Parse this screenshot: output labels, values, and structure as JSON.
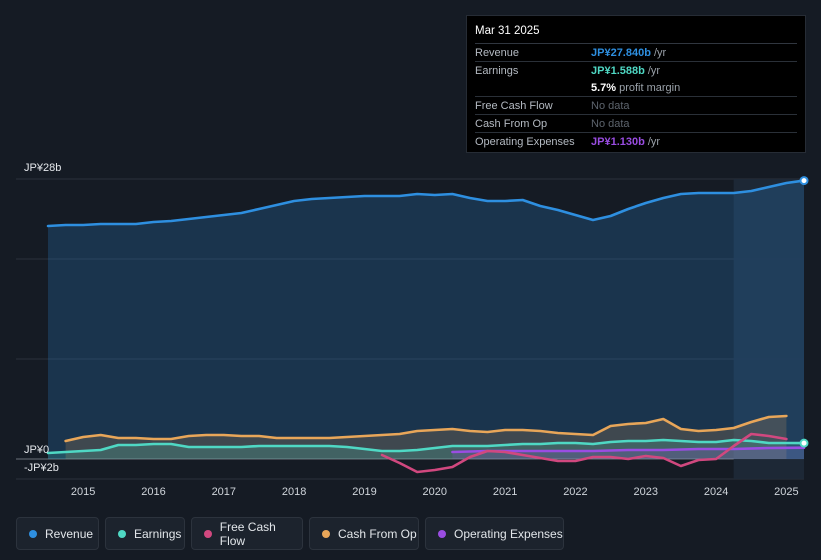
{
  "tooltip": {
    "date": "Mar 31 2025",
    "revenue_label": "Revenue",
    "revenue_value": "JP¥27.840b",
    "revenue_unit": "/yr",
    "earnings_label": "Earnings",
    "earnings_value": "JP¥1.588b",
    "earnings_unit": "/yr",
    "margin_value": "5.7%",
    "margin_label": "profit margin",
    "fcf_label": "Free Cash Flow",
    "fcf_value": "No data",
    "cfo_label": "Cash From Op",
    "cfo_value": "No data",
    "opex_label": "Operating Expenses",
    "opex_value": "JP¥1.130b",
    "opex_unit": "/yr"
  },
  "legend": {
    "revenue": "Revenue",
    "earnings": "Earnings",
    "fcf": "Free Cash Flow",
    "cfo": "Cash From Op",
    "opex": "Operating Expenses"
  },
  "colors": {
    "revenue": "#2e8fe0",
    "earnings": "#4fd8c4",
    "fcf": "#d1487f",
    "cfo": "#e8a659",
    "opex": "#9a4de2"
  },
  "chart_data": {
    "type": "line",
    "y_unit": "JP¥ b",
    "ylim": [
      -2,
      28
    ],
    "xlim": [
      2014.5,
      2025.25
    ],
    "y_tick_labels": [
      {
        "value": 28,
        "label": "JP¥28b"
      },
      {
        "value": 0,
        "label": "JP¥0"
      },
      {
        "value": -2,
        "label": "-JP¥2b"
      }
    ],
    "x_ticks": [
      "2015",
      "2016",
      "2017",
      "2018",
      "2019",
      "2020",
      "2021",
      "2022",
      "2023",
      "2024",
      "2025"
    ],
    "highlight_from": 2024.25,
    "series": [
      {
        "key": "revenue",
        "name": "Revenue",
        "area": true,
        "points": [
          [
            2014.5,
            23.3
          ],
          [
            2014.75,
            23.4
          ],
          [
            2015.0,
            23.4
          ],
          [
            2015.25,
            23.5
          ],
          [
            2015.5,
            23.5
          ],
          [
            2015.75,
            23.5
          ],
          [
            2016.0,
            23.7
          ],
          [
            2016.25,
            23.8
          ],
          [
            2016.5,
            24.0
          ],
          [
            2016.75,
            24.2
          ],
          [
            2017.0,
            24.4
          ],
          [
            2017.25,
            24.6
          ],
          [
            2017.5,
            25.0
          ],
          [
            2017.75,
            25.4
          ],
          [
            2018.0,
            25.8
          ],
          [
            2018.25,
            26.0
          ],
          [
            2018.5,
            26.1
          ],
          [
            2018.75,
            26.2
          ],
          [
            2019.0,
            26.3
          ],
          [
            2019.25,
            26.3
          ],
          [
            2019.5,
            26.3
          ],
          [
            2019.75,
            26.5
          ],
          [
            2020.0,
            26.4
          ],
          [
            2020.25,
            26.5
          ],
          [
            2020.5,
            26.1
          ],
          [
            2020.75,
            25.8
          ],
          [
            2021.0,
            25.8
          ],
          [
            2021.25,
            25.9
          ],
          [
            2021.5,
            25.3
          ],
          [
            2021.75,
            24.9
          ],
          [
            2022.0,
            24.4
          ],
          [
            2022.25,
            23.9
          ],
          [
            2022.5,
            24.3
          ],
          [
            2022.75,
            25.0
          ],
          [
            2023.0,
            25.6
          ],
          [
            2023.25,
            26.1
          ],
          [
            2023.5,
            26.5
          ],
          [
            2023.75,
            26.6
          ],
          [
            2024.0,
            26.6
          ],
          [
            2024.25,
            26.6
          ],
          [
            2024.5,
            26.8
          ],
          [
            2024.75,
            27.2
          ],
          [
            2025.0,
            27.6
          ],
          [
            2025.25,
            27.84
          ]
        ]
      },
      {
        "key": "earnings",
        "name": "Earnings",
        "area": true,
        "points": [
          [
            2014.5,
            0.6
          ],
          [
            2014.75,
            0.7
          ],
          [
            2015.0,
            0.8
          ],
          [
            2015.25,
            0.9
          ],
          [
            2015.5,
            1.4
          ],
          [
            2015.75,
            1.4
          ],
          [
            2016.0,
            1.5
          ],
          [
            2016.25,
            1.5
          ],
          [
            2016.5,
            1.2
          ],
          [
            2016.75,
            1.2
          ],
          [
            2017.0,
            1.2
          ],
          [
            2017.25,
            1.2
          ],
          [
            2017.5,
            1.3
          ],
          [
            2017.75,
            1.3
          ],
          [
            2018.0,
            1.3
          ],
          [
            2018.25,
            1.3
          ],
          [
            2018.5,
            1.3
          ],
          [
            2018.75,
            1.2
          ],
          [
            2019.0,
            1.0
          ],
          [
            2019.25,
            0.8
          ],
          [
            2019.5,
            0.8
          ],
          [
            2019.75,
            0.9
          ],
          [
            2020.0,
            1.1
          ],
          [
            2020.25,
            1.3
          ],
          [
            2020.5,
            1.3
          ],
          [
            2020.75,
            1.3
          ],
          [
            2021.0,
            1.4
          ],
          [
            2021.25,
            1.5
          ],
          [
            2021.5,
            1.5
          ],
          [
            2021.75,
            1.6
          ],
          [
            2022.0,
            1.6
          ],
          [
            2022.25,
            1.5
          ],
          [
            2022.5,
            1.7
          ],
          [
            2022.75,
            1.8
          ],
          [
            2023.0,
            1.8
          ],
          [
            2023.25,
            1.9
          ],
          [
            2023.5,
            1.8
          ],
          [
            2023.75,
            1.7
          ],
          [
            2024.0,
            1.7
          ],
          [
            2024.25,
            1.9
          ],
          [
            2024.5,
            1.8
          ],
          [
            2024.75,
            1.6
          ],
          [
            2025.0,
            1.6
          ],
          [
            2025.25,
            1.588
          ]
        ]
      },
      {
        "key": "fcf",
        "name": "Free Cash Flow",
        "area": false,
        "points": [
          [
            2019.25,
            0.4
          ],
          [
            2019.5,
            -0.4
          ],
          [
            2019.75,
            -1.3
          ],
          [
            2020.0,
            -1.1
          ],
          [
            2020.25,
            -0.8
          ],
          [
            2020.5,
            0.2
          ],
          [
            2020.75,
            0.8
          ],
          [
            2021.0,
            0.7
          ],
          [
            2021.25,
            0.4
          ],
          [
            2021.5,
            0.1
          ],
          [
            2021.75,
            -0.2
          ],
          [
            2022.0,
            -0.2
          ],
          [
            2022.25,
            0.2
          ],
          [
            2022.5,
            0.2
          ],
          [
            2022.75,
            0.0
          ],
          [
            2023.0,
            0.3
          ],
          [
            2023.25,
            0.1
          ],
          [
            2023.5,
            -0.7
          ],
          [
            2023.75,
            -0.1
          ],
          [
            2024.0,
            0.0
          ],
          [
            2024.25,
            1.3
          ],
          [
            2024.5,
            2.5
          ],
          [
            2024.75,
            2.3
          ],
          [
            2025.0,
            2.0
          ]
        ]
      },
      {
        "key": "cfo",
        "name": "Cash From Op",
        "area": true,
        "points": [
          [
            2014.75,
            1.8
          ],
          [
            2015.0,
            2.2
          ],
          [
            2015.25,
            2.4
          ],
          [
            2015.5,
            2.1
          ],
          [
            2015.75,
            2.1
          ],
          [
            2016.0,
            2.0
          ],
          [
            2016.25,
            2.0
          ],
          [
            2016.5,
            2.3
          ],
          [
            2016.75,
            2.4
          ],
          [
            2017.0,
            2.4
          ],
          [
            2017.25,
            2.3
          ],
          [
            2017.5,
            2.3
          ],
          [
            2017.75,
            2.1
          ],
          [
            2018.0,
            2.1
          ],
          [
            2018.25,
            2.1
          ],
          [
            2018.5,
            2.1
          ],
          [
            2018.75,
            2.2
          ],
          [
            2019.0,
            2.3
          ],
          [
            2019.25,
            2.4
          ],
          [
            2019.5,
            2.5
          ],
          [
            2019.75,
            2.8
          ],
          [
            2020.0,
            2.9
          ],
          [
            2020.25,
            3.0
          ],
          [
            2020.5,
            2.8
          ],
          [
            2020.75,
            2.7
          ],
          [
            2021.0,
            2.9
          ],
          [
            2021.25,
            2.9
          ],
          [
            2021.5,
            2.8
          ],
          [
            2021.75,
            2.6
          ],
          [
            2022.0,
            2.5
          ],
          [
            2022.25,
            2.4
          ],
          [
            2022.5,
            3.3
          ],
          [
            2022.75,
            3.5
          ],
          [
            2023.0,
            3.6
          ],
          [
            2023.25,
            4.0
          ],
          [
            2023.5,
            3.0
          ],
          [
            2023.75,
            2.8
          ],
          [
            2024.0,
            2.9
          ],
          [
            2024.25,
            3.1
          ],
          [
            2024.5,
            3.7
          ],
          [
            2024.75,
            4.2
          ],
          [
            2025.0,
            4.3
          ]
        ]
      },
      {
        "key": "opex",
        "name": "Operating Expenses",
        "area": true,
        "points": [
          [
            2020.25,
            0.7
          ],
          [
            2020.75,
            0.8
          ],
          [
            2021.25,
            0.8
          ],
          [
            2021.75,
            0.8
          ],
          [
            2022.25,
            0.8
          ],
          [
            2022.75,
            0.9
          ],
          [
            2023.25,
            0.9
          ],
          [
            2023.75,
            1.0
          ],
          [
            2024.25,
            1.0
          ],
          [
            2024.75,
            1.1
          ],
          [
            2025.25,
            1.13
          ]
        ]
      }
    ]
  }
}
